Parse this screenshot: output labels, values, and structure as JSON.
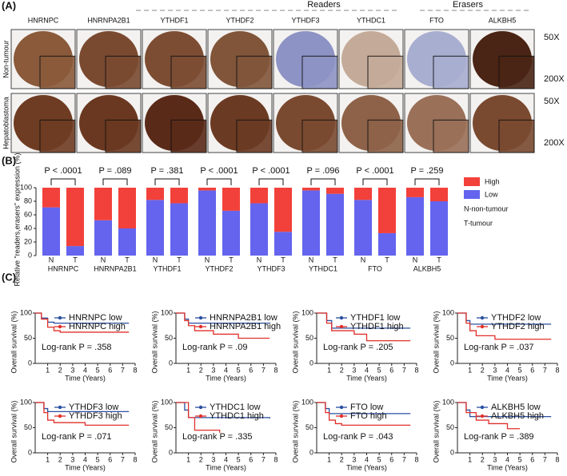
{
  "panel_labels": [
    "(A)",
    "(B)",
    "(C)"
  ],
  "panel_a": {
    "group_labels": [
      "Readers",
      "Erasers"
    ],
    "columns": [
      "HNRNPC",
      "HNRNPA2B1",
      "YTHDF1",
      "YTHDF2",
      "YTHDF3",
      "YTHDC1",
      "FTO",
      "ALKBH5"
    ],
    "rows": [
      "Non-tumour",
      "Hepatoblastoma"
    ],
    "magnifications": [
      "50X",
      "200X"
    ]
  },
  "chart_data": [
    {
      "type": "stacked_bar",
      "ylabel": "Relative \"readers,erasers\" expression (%)",
      "groups": [
        "HNRNPC",
        "HNRNPA2B1",
        "YTHDF1",
        "YTHDF2",
        "YTHDF3",
        "YTHDC1",
        "FTO",
        "ALKBH5"
      ],
      "p_values": [
        "P < .0001",
        "P = .089",
        "P = .381",
        "P < .0001",
        "P < .0001",
        "P = .096",
        "P < .0001",
        "P = .259"
      ],
      "categories": [
        "N",
        "T",
        "N",
        "T",
        "N",
        "T",
        "N",
        "T",
        "N",
        "T",
        "N",
        "T",
        "N",
        "T",
        "N",
        "T"
      ],
      "series": [
        {
          "name": "Low",
          "color": "#6464ee",
          "values": [
            71,
            14,
            52,
            40,
            82,
            77,
            96,
            66,
            77,
            35,
            96,
            91,
            82,
            33,
            86,
            80
          ]
        },
        {
          "name": "High",
          "color": "#f2413a",
          "values": [
            29,
            86,
            48,
            60,
            18,
            23,
            4,
            34,
            23,
            65,
            4,
            9,
            18,
            67,
            14,
            20
          ]
        }
      ],
      "legend_notes": [
        "N-non-tumour",
        "T-tumour"
      ],
      "ylim": [
        0,
        100
      ],
      "yticks": [
        0,
        20,
        40,
        60,
        80,
        100
      ]
    },
    {
      "type": "km",
      "xlabel": "Time (Years)",
      "ylabel": "Overall survival (%)",
      "annotation": "Log-rank P = .358",
      "xlim": [
        0,
        8
      ],
      "xticks": [
        1,
        2,
        3,
        4,
        5,
        6,
        7,
        8
      ],
      "ylim": [
        0,
        100
      ],
      "yticks": [
        0,
        50,
        100
      ],
      "series": [
        {
          "name": "HNRNPC low",
          "color": "#2a4fa0",
          "x": [
            0,
            0.5,
            1,
            1.5,
            7.5
          ],
          "values": [
            100,
            90,
            82,
            80,
            80
          ]
        },
        {
          "name": "HNRNPC high",
          "color": "#e0302a",
          "x": [
            0,
            0.5,
            1,
            1.5,
            2,
            7.5
          ],
          "values": [
            100,
            88,
            72,
            65,
            62,
            62
          ]
        }
      ]
    },
    {
      "type": "km",
      "xlabel": "Time (Years)",
      "ylabel": "Overall survival (%)",
      "annotation": "Log-rank P = .09",
      "xlim": [
        0,
        8
      ],
      "xticks": [
        1,
        2,
        3,
        4,
        5,
        6,
        7,
        8
      ],
      "ylim": [
        0,
        100
      ],
      "yticks": [
        0,
        50,
        100
      ],
      "series": [
        {
          "name": "HNRNPA2B1 low",
          "color": "#2a4fa0",
          "x": [
            0,
            0.7,
            1,
            7.5
          ],
          "values": [
            100,
            88,
            80,
            80
          ]
        },
        {
          "name": "HNRNPA2B1 high",
          "color": "#e0302a",
          "x": [
            0,
            0.7,
            1,
            1.5,
            3,
            5,
            7.5
          ],
          "values": [
            100,
            85,
            75,
            65,
            58,
            50,
            50
          ]
        }
      ]
    },
    {
      "type": "km",
      "xlabel": "Time (Years)",
      "ylabel": "Overall survival (%)",
      "annotation": "Log-rank P = .205",
      "xlim": [
        0,
        8
      ],
      "xticks": [
        1,
        2,
        3,
        4,
        5,
        6,
        7,
        8
      ],
      "ylim": [
        0,
        100
      ],
      "yticks": [
        0,
        50,
        100
      ],
      "series": [
        {
          "name": "YTHDF1 low",
          "color": "#2a4fa0",
          "x": [
            0,
            0.8,
            1.2,
            7.5
          ],
          "values": [
            100,
            85,
            70,
            70
          ]
        },
        {
          "name": "YTHDF1 high",
          "color": "#e0302a",
          "x": [
            0,
            0.8,
            1.2,
            3,
            4,
            7.5
          ],
          "values": [
            100,
            80,
            65,
            58,
            45,
            45
          ]
        }
      ]
    },
    {
      "type": "km",
      "xlabel": "Time (Years)",
      "ylabel": "Overall survival (%)",
      "annotation": "Log-rank P = .037",
      "xlim": [
        0,
        8
      ],
      "xticks": [
        1,
        2,
        3,
        4,
        5,
        6,
        7,
        8
      ],
      "ylim": [
        0,
        100
      ],
      "yticks": [
        0,
        50,
        100
      ],
      "series": [
        {
          "name": "YTHDF2 low",
          "color": "#2a4fa0",
          "x": [
            0,
            0.7,
            1,
            7.5
          ],
          "values": [
            100,
            85,
            78,
            78
          ]
        },
        {
          "name": "YTHDF2 high",
          "color": "#e0302a",
          "x": [
            0,
            0.7,
            1,
            1.5,
            3,
            7.5
          ],
          "values": [
            100,
            80,
            65,
            55,
            48,
            48
          ]
        }
      ]
    },
    {
      "type": "km",
      "xlabel": "Time (Years)",
      "ylabel": "Overall survival (%)",
      "annotation": "Log-rank P = .071",
      "xlim": [
        0,
        8
      ],
      "xticks": [
        1,
        2,
        3,
        4,
        5,
        6,
        7,
        8
      ],
      "ylim": [
        0,
        100
      ],
      "yticks": [
        0,
        50,
        100
      ],
      "series": [
        {
          "name": "YTHDF3 low",
          "color": "#2a4fa0",
          "x": [
            0,
            0.7,
            1,
            7.5
          ],
          "values": [
            100,
            88,
            82,
            82
          ]
        },
        {
          "name": "YTHDF3 high",
          "color": "#e0302a",
          "x": [
            0,
            0.7,
            1,
            1.5,
            4,
            7.5
          ],
          "values": [
            100,
            80,
            65,
            60,
            55,
            55
          ]
        }
      ]
    },
    {
      "type": "km",
      "xlabel": "Time (Years)",
      "ylabel": "Overall survival (%)",
      "annotation": "Log-rank P = .335",
      "xlim": [
        0,
        8
      ],
      "xticks": [
        1,
        2,
        3,
        4,
        5,
        6,
        7,
        8
      ],
      "ylim": [
        0,
        100
      ],
      "yticks": [
        0,
        50,
        100
      ],
      "series": [
        {
          "name": "YTHDC1 low",
          "color": "#2a4fa0",
          "x": [
            0,
            0.7,
            1,
            7.5
          ],
          "values": [
            100,
            85,
            70,
            68
          ]
        },
        {
          "name": "YTHDC1 high",
          "color": "#e0302a",
          "x": [
            0,
            1,
            1.5,
            3.5
          ],
          "values": [
            100,
            70,
            45,
            40
          ]
        }
      ]
    },
    {
      "type": "km",
      "xlabel": "Time (Years)",
      "ylabel": "Overall survival (%)",
      "annotation": "Log-rank P = .043",
      "xlim": [
        0,
        8
      ],
      "xticks": [
        1,
        2,
        3,
        4,
        5,
        6,
        7,
        8
      ],
      "ylim": [
        0,
        100
      ],
      "yticks": [
        0,
        50,
        100
      ],
      "series": [
        {
          "name": "FTO low",
          "color": "#2a4fa0",
          "x": [
            0,
            0.7,
            1,
            7.5
          ],
          "values": [
            100,
            88,
            78,
            78
          ]
        },
        {
          "name": "FTO high",
          "color": "#e0302a",
          "x": [
            0,
            0.7,
            1,
            1.5,
            2,
            7.5
          ],
          "values": [
            100,
            80,
            65,
            58,
            55,
            55
          ]
        }
      ]
    },
    {
      "type": "km",
      "xlabel": "Time (Years)",
      "ylabel": "Overall survival (%)",
      "annotation": "Log-rank P = .389",
      "xlim": [
        0,
        8
      ],
      "xticks": [
        1,
        2,
        3,
        4,
        5,
        6,
        7,
        8
      ],
      "ylim": [
        0,
        100
      ],
      "yticks": [
        0,
        50,
        100
      ],
      "series": [
        {
          "name": "ALKBH5 low",
          "color": "#2a4fa0",
          "x": [
            0,
            0.7,
            1,
            7.5
          ],
          "values": [
            100,
            85,
            72,
            72
          ]
        },
        {
          "name": "ALKBH5 high",
          "color": "#e0302a",
          "x": [
            0,
            0.7,
            1.5,
            2.5,
            4,
            5
          ],
          "values": [
            100,
            80,
            65,
            58,
            48,
            48
          ]
        }
      ]
    }
  ]
}
